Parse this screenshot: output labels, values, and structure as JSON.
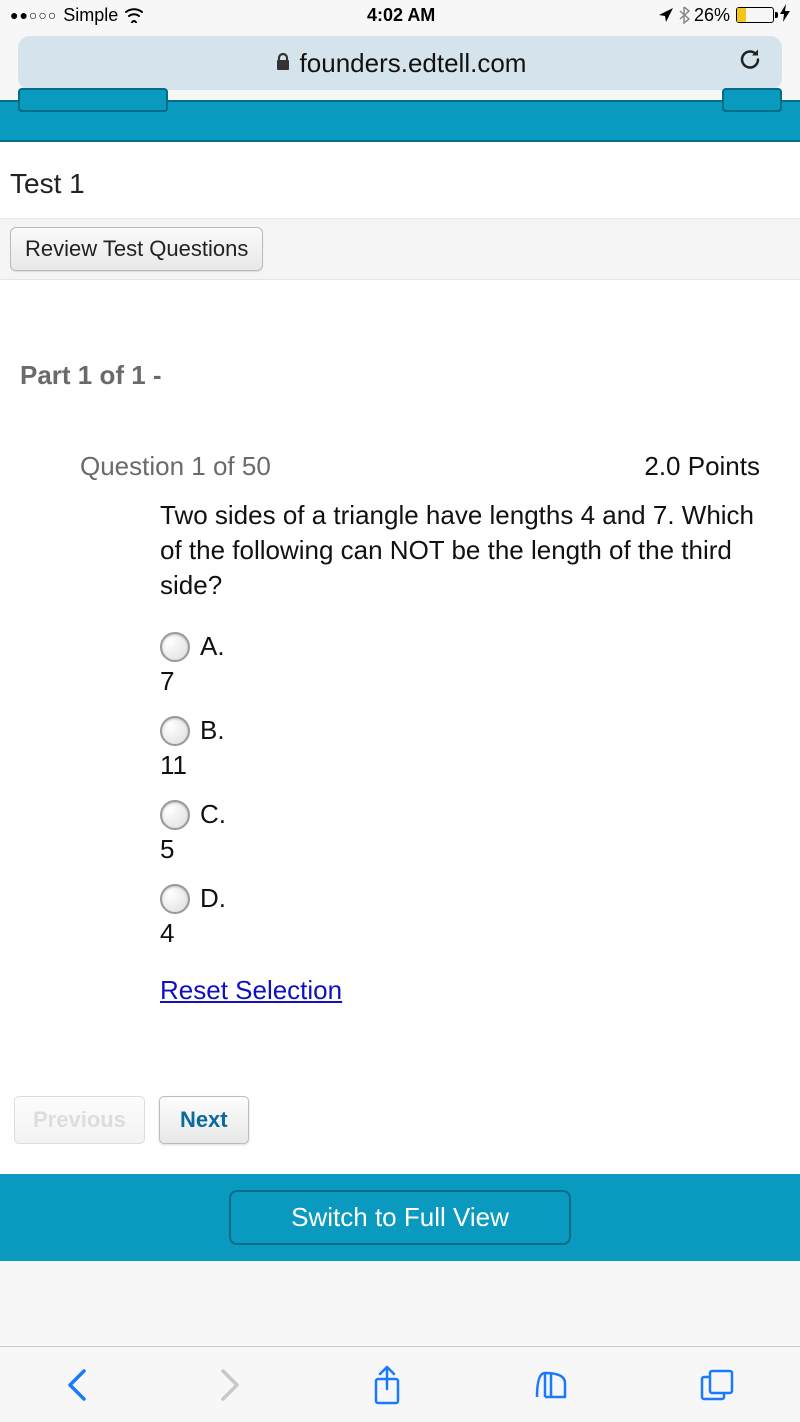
{
  "status": {
    "signal_dots": "●●○○○",
    "carrier": "Simple",
    "time": "4:02 AM",
    "battery_pct": "26%",
    "battery_fill_pct": 26
  },
  "browser": {
    "url": "founders.edtell.com"
  },
  "test": {
    "title": "Test 1",
    "review_button": "Review Test Questions",
    "part_label": "Part 1 of 1 -"
  },
  "question": {
    "number_label": "Question 1 of 50",
    "points_label": "2.0 Points",
    "text": "Two sides of a triangle have lengths 4 and 7. Which of the following can NOT be the length of the third side?",
    "options": [
      {
        "letter": "A.",
        "value": "7"
      },
      {
        "letter": "B.",
        "value": "11"
      },
      {
        "letter": "C.",
        "value": "5"
      },
      {
        "letter": "D.",
        "value": "4"
      }
    ],
    "reset_label": "Reset Selection"
  },
  "nav": {
    "prev": "Previous",
    "next": "Next"
  },
  "fullview": {
    "button": "Switch to Full View"
  },
  "colors": {
    "teal": "#0a9abf",
    "teal_dark": "#036c86",
    "link": "#1010c0",
    "ios_blue": "#197aff",
    "gray_text": "#6a6a6a",
    "battery_yellow": "#f5c518"
  }
}
